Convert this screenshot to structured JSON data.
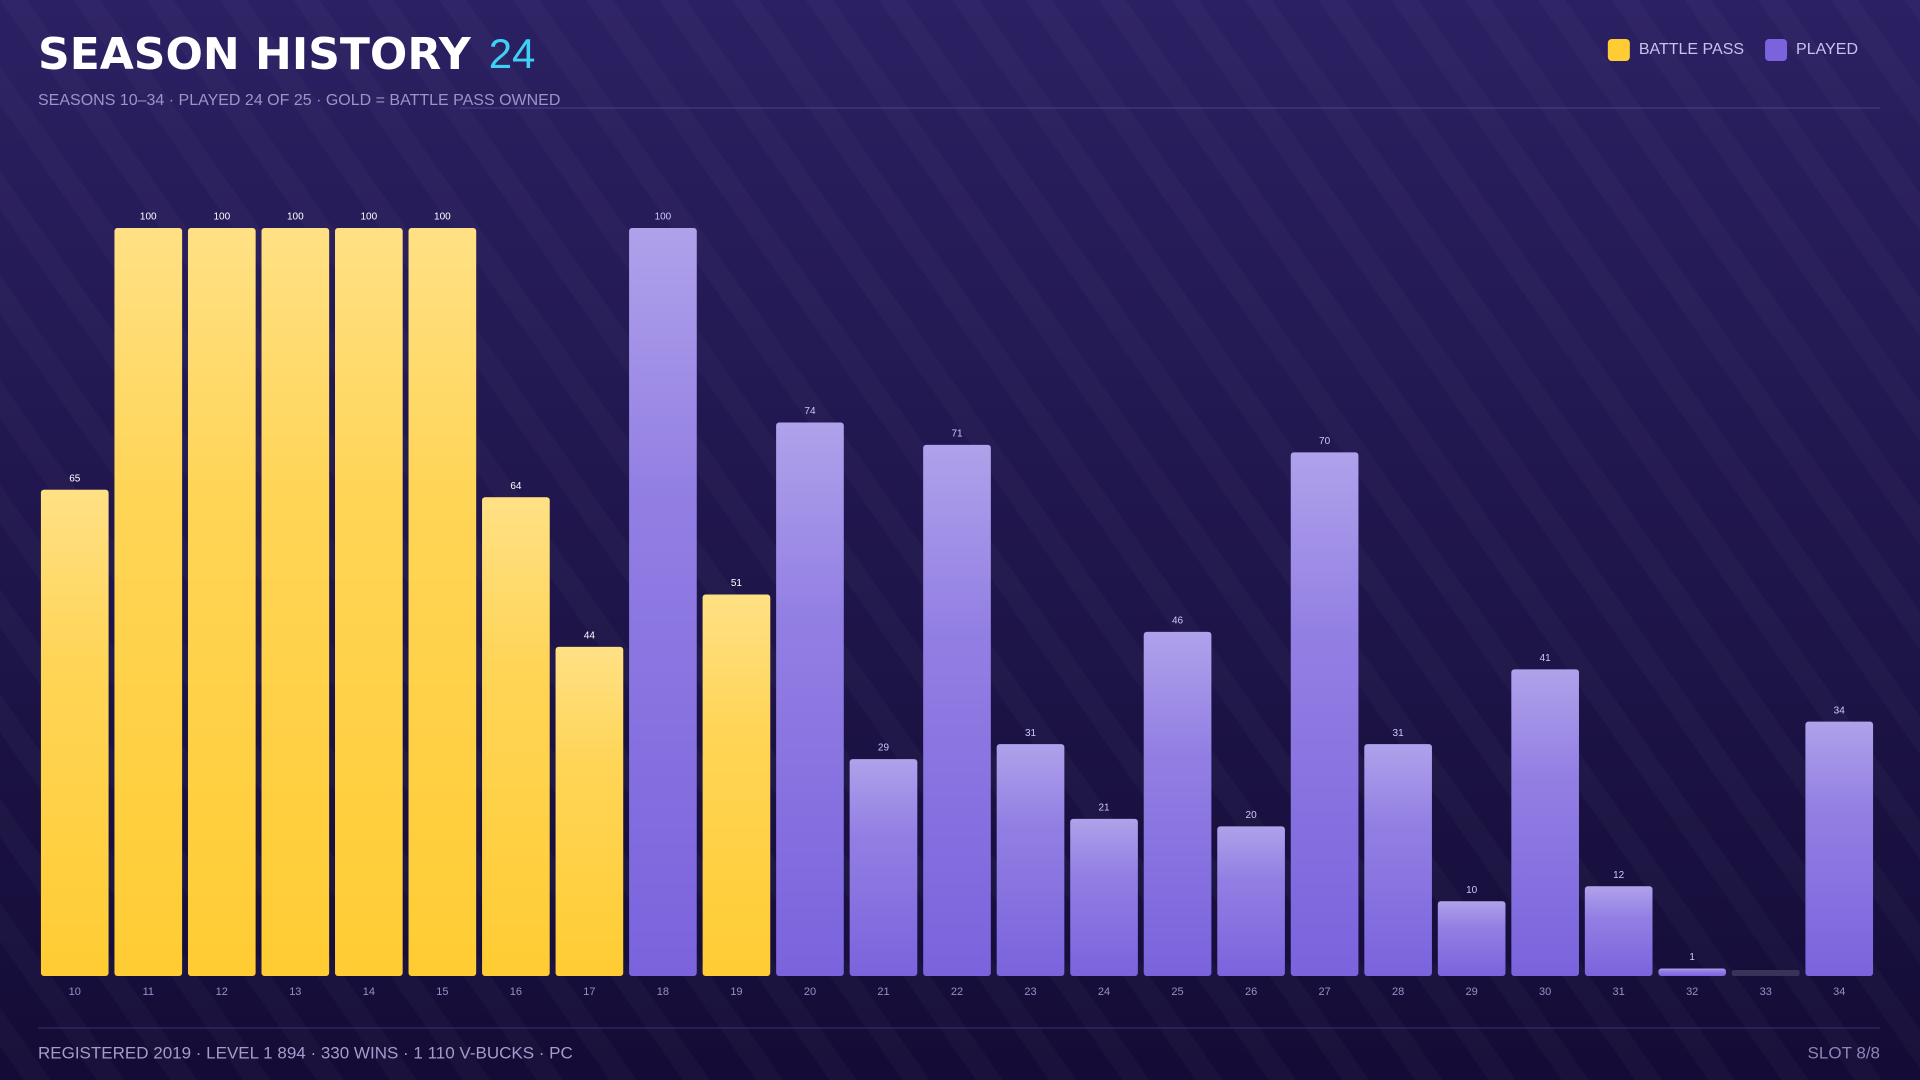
{
  "chart_data": {
    "type": "bar",
    "title": "SEASON HISTORY",
    "title_count": "24",
    "subtitle": "SEASONS 10–34 · PLAYED 24 OF 25 · GOLD = BATTLE PASS OWNED",
    "footer": "REGISTERED 2019 · LEVEL 1 894 · 330 WINS · 1 110 V-BUCKS · PC",
    "slot": "SLOT 8/8",
    "categories": [
      "10",
      "11",
      "12",
      "13",
      "14",
      "15",
      "16",
      "17",
      "18",
      "19",
      "20",
      "21",
      "22",
      "23",
      "24",
      "25",
      "26",
      "27",
      "28",
      "29",
      "30",
      "31",
      "32",
      "33",
      "34"
    ],
    "series": [
      {
        "name": "BATTLE PASS",
        "color": "#ffcc33",
        "values": [
          65,
          100,
          100,
          100,
          100,
          100,
          64,
          44,
          null,
          51,
          null,
          null,
          null,
          null,
          null,
          null,
          null,
          null,
          null,
          null,
          null,
          null,
          null,
          null,
          null
        ]
      },
      {
        "name": "PLAYED",
        "color": "#7b63dd",
        "values": [
          null,
          null,
          null,
          null,
          null,
          null,
          null,
          null,
          100,
          null,
          74,
          29,
          71,
          31,
          21,
          46,
          20,
          70,
          31,
          10,
          41,
          12,
          1,
          null,
          34
        ]
      }
    ],
    "ylim": [
      0,
      100
    ],
    "legend": "top-right"
  }
}
